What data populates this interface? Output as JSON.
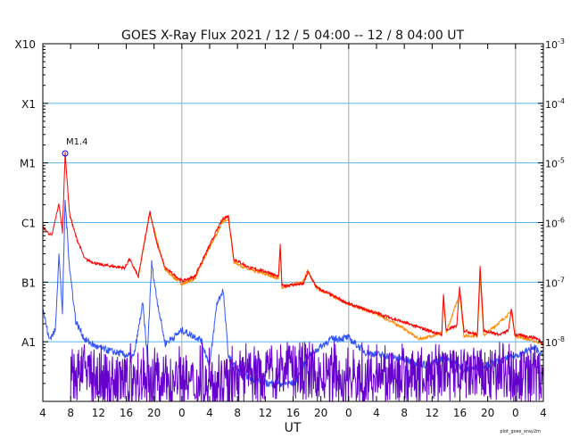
{
  "chart_data": {
    "type": "line",
    "title": "GOES X-Ray Flux   2021 / 12 /  5   04:00 -- 12 /  8   04:00   UT",
    "xlabel": "UT",
    "x_units": "hours since 2021-12-05 04:00 UT",
    "xlim": [
      0,
      72
    ],
    "x_tick_labels": [
      "4",
      "8",
      "12",
      "16",
      "20",
      "0",
      "4",
      "8",
      "12",
      "16",
      "20",
      "0",
      "4",
      "8",
      "12",
      "16",
      "20",
      "0",
      "4"
    ],
    "y_scale": "log10 flux (W/m^2)",
    "ylim": [
      -9,
      -3
    ],
    "y_left_labels": [
      {
        "label": "X10",
        "log": -3
      },
      {
        "label": "X1",
        "log": -4
      },
      {
        "label": "M1",
        "log": -5
      },
      {
        "label": "C1",
        "log": -6
      },
      {
        "label": "B1",
        "log": -7
      },
      {
        "label": "A1",
        "log": -8
      }
    ],
    "y_right_labels": [
      {
        "base": "10",
        "exp": "-3",
        "log": -3
      },
      {
        "base": "10",
        "exp": "-4",
        "log": -4
      },
      {
        "base": "10",
        "exp": "-5",
        "log": -5
      },
      {
        "base": "10",
        "exp": "-6",
        "log": -6
      },
      {
        "base": "10",
        "exp": "-7",
        "log": -7
      },
      {
        "base": "10",
        "exp": "-8",
        "log": -8
      }
    ],
    "day_boundaries": [
      20,
      44,
      68
    ],
    "annotation": {
      "label": "M1.4",
      "x": 3.21,
      "log": -4.84
    },
    "footer": "plot_goes_xray2m",
    "colors": {
      "long_primary": "#ff0000",
      "long_secondary": "#ff8800",
      "short_primary": "#3355ff",
      "short_secondary": "#6600cc",
      "grid": "#55b4f0",
      "day": "#aaaaaa"
    },
    "series": [
      {
        "name": "long-secondary",
        "color": "#ff8800",
        "points": [
          [
            13.74,
            -6.91
          ],
          [
            15.4,
            -5.85
          ],
          [
            17.59,
            -6.8
          ],
          [
            20.03,
            -7.03
          ],
          [
            21.82,
            -6.95
          ],
          [
            24.01,
            -6.42
          ],
          [
            25.93,
            -5.98
          ],
          [
            26.7,
            -5.93
          ],
          [
            27.47,
            -6.66
          ],
          [
            29.78,
            -6.8
          ],
          [
            32.35,
            -6.87
          ],
          [
            33.89,
            -6.95
          ],
          [
            34.15,
            -6.45
          ],
          [
            34.4,
            -7.1
          ],
          [
            37.48,
            -6.98
          ],
          [
            38.13,
            -6.8
          ],
          [
            39.41,
            -7.1
          ],
          [
            43.9,
            -7.36
          ],
          [
            47.75,
            -7.52
          ],
          [
            51.6,
            -7.75
          ],
          [
            54.0,
            -7.95
          ],
          [
            55.46,
            -7.92
          ],
          [
            57.38,
            -7.85
          ],
          [
            57.64,
            -7.3
          ],
          [
            58.02,
            -7.85
          ],
          [
            59.95,
            -7.2
          ],
          [
            60.59,
            -7.9
          ],
          [
            62.52,
            -7.9
          ],
          [
            62.9,
            -6.9
          ],
          [
            63.41,
            -7.9
          ],
          [
            67.39,
            -7.5
          ],
          [
            67.91,
            -7.9
          ],
          [
            72,
            -8.03
          ]
        ]
      },
      {
        "name": "long-primary",
        "color": "#ff0000",
        "points": [
          [
            0,
            -6.08
          ],
          [
            1.28,
            -6.23
          ],
          [
            2.31,
            -5.68
          ],
          [
            2.82,
            -6.16
          ],
          [
            3.21,
            -4.84
          ],
          [
            3.85,
            -5.86
          ],
          [
            4.75,
            -6.23
          ],
          [
            6.03,
            -6.61
          ],
          [
            7.96,
            -6.7
          ],
          [
            11.81,
            -6.76
          ],
          [
            12.45,
            -6.61
          ],
          [
            13.74,
            -6.91
          ],
          [
            14.63,
            -6.31
          ],
          [
            15.4,
            -5.81
          ],
          [
            16.3,
            -6.31
          ],
          [
            17.59,
            -6.76
          ],
          [
            20.03,
            -6.98
          ],
          [
            21.82,
            -6.91
          ],
          [
            24.01,
            -6.38
          ],
          [
            25.03,
            -6.13
          ],
          [
            25.93,
            -5.93
          ],
          [
            26.7,
            -5.89
          ],
          [
            27.47,
            -6.61
          ],
          [
            29.78,
            -6.76
          ],
          [
            32.35,
            -6.83
          ],
          [
            33.89,
            -6.91
          ],
          [
            34.15,
            -6.38
          ],
          [
            34.4,
            -7.06
          ],
          [
            37.48,
            -7.03
          ],
          [
            38.13,
            -6.83
          ],
          [
            39.41,
            -7.09
          ],
          [
            43.9,
            -7.36
          ],
          [
            47.75,
            -7.51
          ],
          [
            51.6,
            -7.66
          ],
          [
            55.46,
            -7.81
          ],
          [
            57.38,
            -7.88
          ],
          [
            57.64,
            -7.21
          ],
          [
            58.02,
            -7.81
          ],
          [
            59.56,
            -7.73
          ],
          [
            59.95,
            -7.06
          ],
          [
            60.59,
            -7.81
          ],
          [
            62.52,
            -7.88
          ],
          [
            62.9,
            -6.71
          ],
          [
            63.41,
            -7.81
          ],
          [
            65.73,
            -7.88
          ],
          [
            67.01,
            -7.81
          ],
          [
            67.39,
            -7.43
          ],
          [
            67.91,
            -7.88
          ],
          [
            70.86,
            -7.93
          ],
          [
            72,
            -8.03
          ]
        ]
      },
      {
        "name": "short-primary",
        "color": "#3355ff",
        "points": [
          [
            0,
            -7.43
          ],
          [
            0.9,
            -7.96
          ],
          [
            1.8,
            -7.81
          ],
          [
            2.31,
            -6.53
          ],
          [
            2.82,
            -7.51
          ],
          [
            3.21,
            -5.63
          ],
          [
            3.85,
            -6.76
          ],
          [
            4.75,
            -7.66
          ],
          [
            6.03,
            -7.96
          ],
          [
            7.96,
            -8.1
          ],
          [
            10.53,
            -8.18
          ],
          [
            13.09,
            -8.25
          ],
          [
            14.38,
            -7.36
          ],
          [
            15.02,
            -8.25
          ],
          [
            15.66,
            -6.68
          ],
          [
            16.3,
            -7.21
          ],
          [
            17.59,
            -8.03
          ],
          [
            20.03,
            -7.81
          ],
          [
            22.72,
            -7.96
          ],
          [
            24.01,
            -8.4
          ],
          [
            25.03,
            -7.36
          ],
          [
            25.93,
            -7.13
          ],
          [
            26.7,
            -8.25
          ],
          [
            28.5,
            -8.55
          ],
          [
            32.35,
            -8.7
          ],
          [
            36.2,
            -8.7
          ],
          [
            38.13,
            -8.25
          ],
          [
            41.34,
            -7.96
          ],
          [
            43.9,
            -7.93
          ],
          [
            46.47,
            -8.18
          ],
          [
            50.32,
            -8.25
          ],
          [
            55.46,
            -8.4
          ],
          [
            58.02,
            -8.25
          ],
          [
            60.59,
            -8.48
          ],
          [
            65.73,
            -8.33
          ],
          [
            70.86,
            -8.1
          ],
          [
            72,
            -8.25
          ]
        ]
      },
      {
        "name": "short-secondary",
        "color": "#6600cc",
        "points": [
          [
            4,
            -8.55
          ],
          [
            12,
            -8.7
          ],
          [
            20,
            -8.65
          ],
          [
            24,
            -8.8
          ],
          [
            30,
            -8.6
          ],
          [
            36,
            -8.5
          ],
          [
            44,
            -8.7
          ],
          [
            52,
            -8.6
          ],
          [
            60,
            -8.55
          ],
          [
            72,
            -8.6
          ]
        ]
      }
    ]
  }
}
